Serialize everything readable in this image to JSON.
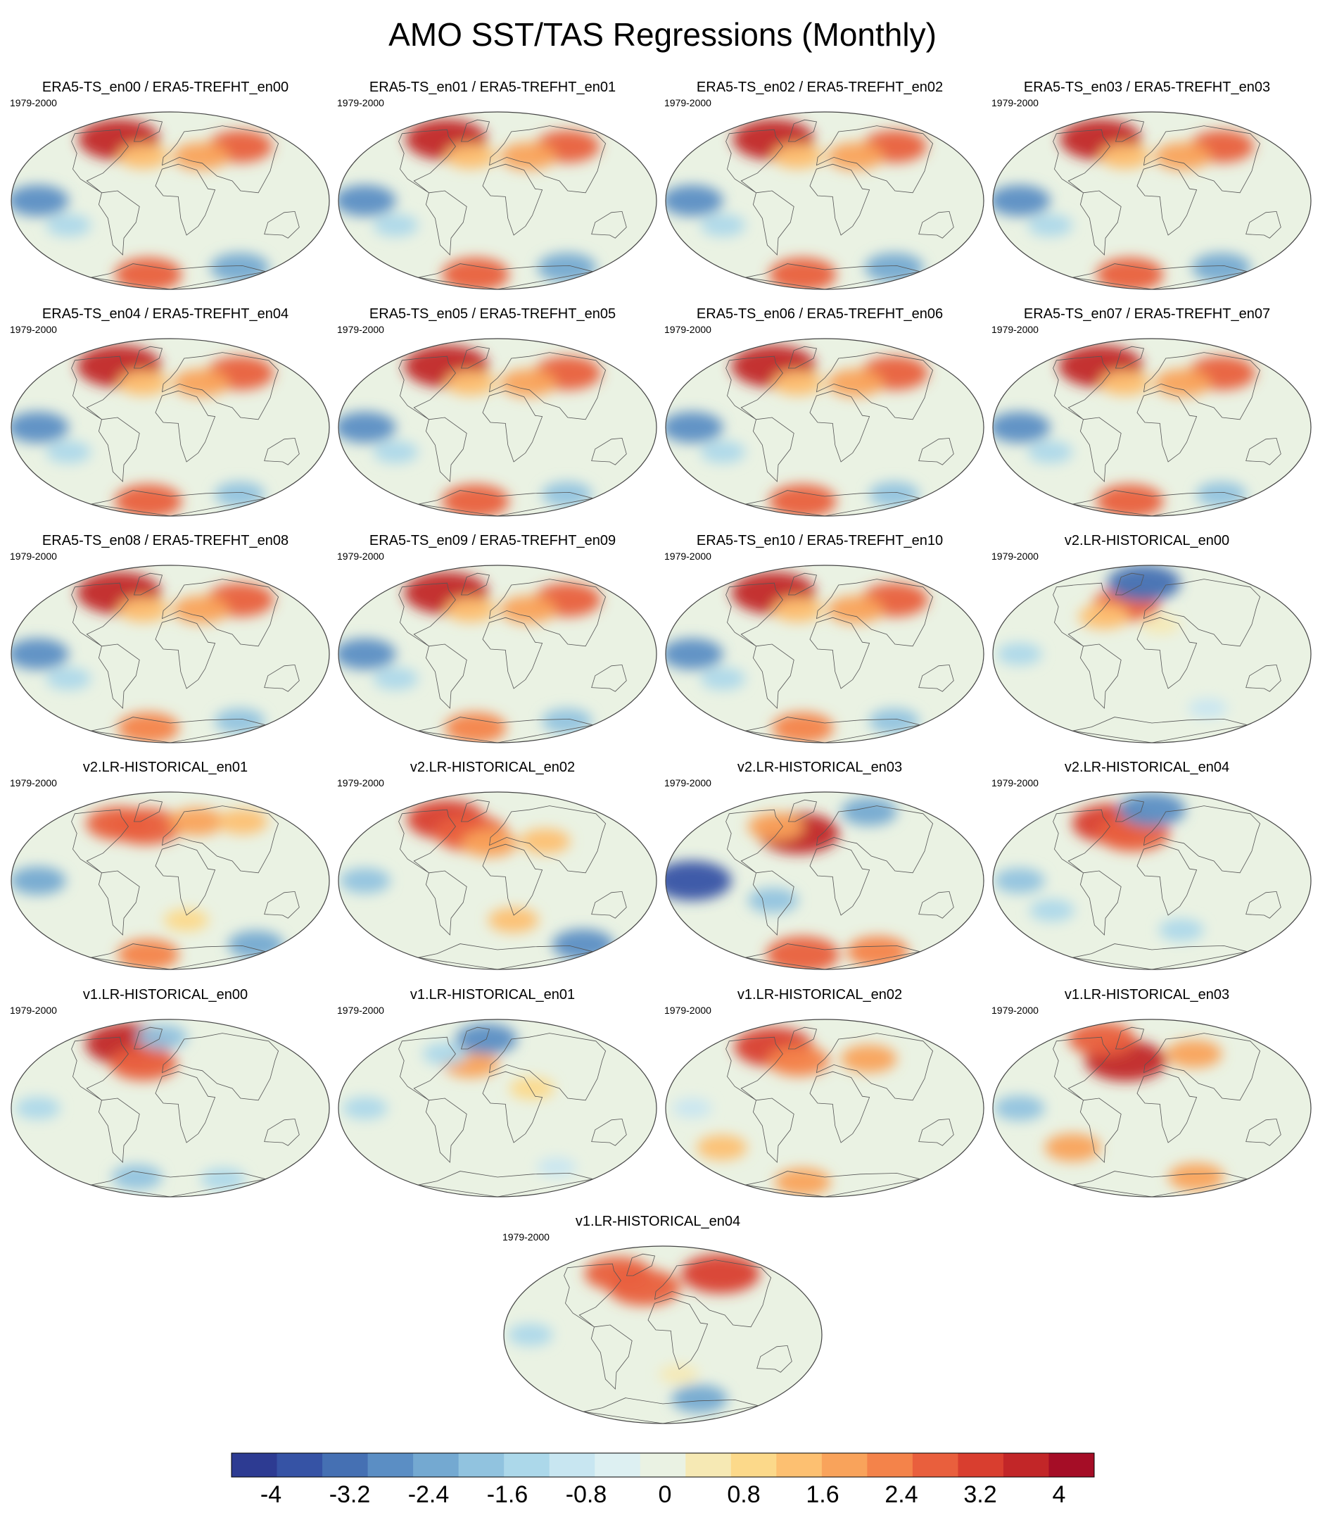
{
  "title": "AMO SST/TAS Regressions (Monthly)",
  "period": "1979-2000",
  "colors": {
    "palette": [
      "#2d3b92",
      "#3653a5",
      "#4570b3",
      "#5b8ec4",
      "#74a9d1",
      "#91c3df",
      "#acd8ea",
      "#c8e6f1",
      "#ddf0f2",
      "#eaf2e3",
      "#f6e9b4",
      "#fcd98a",
      "#fdc071",
      "#f9a35b",
      "#f4834a",
      "#e95f3d",
      "#d93e2f",
      "#c22628",
      "#a50d26"
    ],
    "coast": "#555555",
    "frame": "#444444"
  },
  "chart_data": {
    "type": "heatmap",
    "description_variable": "regression coefficient",
    "colorbar": {
      "levels": [
        -4.4,
        -4,
        -3.6,
        -3.2,
        -2.8,
        -2.4,
        -2,
        -1.6,
        -1.2,
        -0.8,
        -0.4,
        0,
        0.4,
        0.8,
        1.2,
        1.6,
        2,
        2.4,
        2.8,
        3.2,
        3.6,
        4,
        4.4
      ],
      "tick_labels": [
        "-4",
        "-3.2",
        "-2.4",
        "-1.6",
        "-0.8",
        "0",
        "0.8",
        "1.6",
        "2.4",
        "3.2",
        "4"
      ],
      "tick_values": [
        -4,
        -3.2,
        -2.4,
        -1.6,
        -0.8,
        0,
        0.8,
        1.6,
        2.4,
        3.2,
        4
      ]
    },
    "panels": [
      {
        "label": "ERA5-TS_en00 / ERA5-TREFHT_en00",
        "features": [
          {
            "lon": -80,
            "lat": 62,
            "v": 3.8
          },
          {
            "lon": 100,
            "lat": 55,
            "v": 2.6
          },
          {
            "lon": 40,
            "lat": 45,
            "v": 2.0
          },
          {
            "lon": -35,
            "lat": 45,
            "v": 1.6
          },
          {
            "lon": -150,
            "lat": 0,
            "v": -2.4
          },
          {
            "lon": -120,
            "lat": -25,
            "v": -1.2
          },
          {
            "lon": -45,
            "lat": -75,
            "v": 2.8
          },
          {
            "lon": 120,
            "lat": -68,
            "v": -2.2
          }
        ]
      },
      {
        "label": "ERA5-TS_en01 / ERA5-TREFHT_en01",
        "features": [
          {
            "lon": -80,
            "lat": 62,
            "v": 3.8
          },
          {
            "lon": 100,
            "lat": 55,
            "v": 2.6
          },
          {
            "lon": 40,
            "lat": 45,
            "v": 2.0
          },
          {
            "lon": -35,
            "lat": 45,
            "v": 1.6
          },
          {
            "lon": -150,
            "lat": 0,
            "v": -2.4
          },
          {
            "lon": -120,
            "lat": -25,
            "v": -1.2
          },
          {
            "lon": -45,
            "lat": -75,
            "v": 2.8
          },
          {
            "lon": 120,
            "lat": -68,
            "v": -2.2
          }
        ]
      },
      {
        "label": "ERA5-TS_en02 / ERA5-TREFHT_en02",
        "features": [
          {
            "lon": -80,
            "lat": 62,
            "v": 3.8
          },
          {
            "lon": 100,
            "lat": 55,
            "v": 2.6
          },
          {
            "lon": 40,
            "lat": 45,
            "v": 2.0
          },
          {
            "lon": -35,
            "lat": 45,
            "v": 1.6
          },
          {
            "lon": -150,
            "lat": 0,
            "v": -2.4
          },
          {
            "lon": -120,
            "lat": -25,
            "v": -1.2
          },
          {
            "lon": -45,
            "lat": -75,
            "v": 2.8
          },
          {
            "lon": 120,
            "lat": -68,
            "v": -2.2
          }
        ]
      },
      {
        "label": "ERA5-TS_en03 / ERA5-TREFHT_en03",
        "features": [
          {
            "lon": -80,
            "lat": 62,
            "v": 3.8
          },
          {
            "lon": 100,
            "lat": 55,
            "v": 2.6
          },
          {
            "lon": 40,
            "lat": 45,
            "v": 2.0
          },
          {
            "lon": -35,
            "lat": 45,
            "v": 1.6
          },
          {
            "lon": -150,
            "lat": 0,
            "v": -2.4
          },
          {
            "lon": -120,
            "lat": -25,
            "v": -1.2
          },
          {
            "lon": -45,
            "lat": -75,
            "v": 2.8
          },
          {
            "lon": 120,
            "lat": -68,
            "v": -2.2
          }
        ]
      },
      {
        "label": "ERA5-TS_en04 / ERA5-TREFHT_en04",
        "features": [
          {
            "lon": -80,
            "lat": 62,
            "v": 4.0
          },
          {
            "lon": 100,
            "lat": 55,
            "v": 2.8
          },
          {
            "lon": 40,
            "lat": 45,
            "v": 2.0
          },
          {
            "lon": -35,
            "lat": 45,
            "v": 1.6
          },
          {
            "lon": -150,
            "lat": 0,
            "v": -2.4
          },
          {
            "lon": -120,
            "lat": -25,
            "v": -1.2
          },
          {
            "lon": -45,
            "lat": -75,
            "v": 2.8
          },
          {
            "lon": 120,
            "lat": -68,
            "v": -1.6
          }
        ]
      },
      {
        "label": "ERA5-TS_en05 / ERA5-TREFHT_en05",
        "features": [
          {
            "lon": -80,
            "lat": 62,
            "v": 4.0
          },
          {
            "lon": 100,
            "lat": 55,
            "v": 2.8
          },
          {
            "lon": 40,
            "lat": 45,
            "v": 2.0
          },
          {
            "lon": -35,
            "lat": 45,
            "v": 1.6
          },
          {
            "lon": -150,
            "lat": 0,
            "v": -2.4
          },
          {
            "lon": -120,
            "lat": -25,
            "v": -1.2
          },
          {
            "lon": -45,
            "lat": -75,
            "v": 2.8
          },
          {
            "lon": 120,
            "lat": -68,
            "v": -1.6
          }
        ]
      },
      {
        "label": "ERA5-TS_en06 / ERA5-TREFHT_en06",
        "features": [
          {
            "lon": -80,
            "lat": 62,
            "v": 4.0
          },
          {
            "lon": 100,
            "lat": 55,
            "v": 2.8
          },
          {
            "lon": 40,
            "lat": 45,
            "v": 2.0
          },
          {
            "lon": -35,
            "lat": 45,
            "v": 1.6
          },
          {
            "lon": -150,
            "lat": 0,
            "v": -2.4
          },
          {
            "lon": -120,
            "lat": -25,
            "v": -1.2
          },
          {
            "lon": -45,
            "lat": -75,
            "v": 2.8
          },
          {
            "lon": 120,
            "lat": -68,
            "v": -1.6
          }
        ]
      },
      {
        "label": "ERA5-TS_en07 / ERA5-TREFHT_en07",
        "features": [
          {
            "lon": -80,
            "lat": 62,
            "v": 4.0
          },
          {
            "lon": 100,
            "lat": 55,
            "v": 2.8
          },
          {
            "lon": 40,
            "lat": 45,
            "v": 2.0
          },
          {
            "lon": -35,
            "lat": 45,
            "v": 1.6
          },
          {
            "lon": -150,
            "lat": 0,
            "v": -2.4
          },
          {
            "lon": -120,
            "lat": -25,
            "v": -1.2
          },
          {
            "lon": -45,
            "lat": -75,
            "v": 2.8
          },
          {
            "lon": 120,
            "lat": -68,
            "v": -1.6
          }
        ]
      },
      {
        "label": "ERA5-TS_en08 / ERA5-TREFHT_en08",
        "features": [
          {
            "lon": -80,
            "lat": 62,
            "v": 4.0
          },
          {
            "lon": 100,
            "lat": 55,
            "v": 2.8
          },
          {
            "lon": 40,
            "lat": 45,
            "v": 2.0
          },
          {
            "lon": -35,
            "lat": 45,
            "v": 1.6
          },
          {
            "lon": -150,
            "lat": 0,
            "v": -2.4
          },
          {
            "lon": -120,
            "lat": -25,
            "v": -1.2
          },
          {
            "lon": -45,
            "lat": -75,
            "v": 2.4
          },
          {
            "lon": 120,
            "lat": -68,
            "v": -1.6
          }
        ]
      },
      {
        "label": "ERA5-TS_en09 / ERA5-TREFHT_en09",
        "features": [
          {
            "lon": -80,
            "lat": 62,
            "v": 4.0
          },
          {
            "lon": 100,
            "lat": 55,
            "v": 2.8
          },
          {
            "lon": 40,
            "lat": 45,
            "v": 2.0
          },
          {
            "lon": -35,
            "lat": 45,
            "v": 1.6
          },
          {
            "lon": -150,
            "lat": 0,
            "v": -2.4
          },
          {
            "lon": -120,
            "lat": -25,
            "v": -1.2
          },
          {
            "lon": -45,
            "lat": -75,
            "v": 2.4
          },
          {
            "lon": 120,
            "lat": -68,
            "v": -1.6
          }
        ]
      },
      {
        "label": "ERA5-TS_en10 / ERA5-TREFHT_en10",
        "features": [
          {
            "lon": -80,
            "lat": 62,
            "v": 4.0
          },
          {
            "lon": 100,
            "lat": 55,
            "v": 2.8
          },
          {
            "lon": 40,
            "lat": 45,
            "v": 2.0
          },
          {
            "lon": -35,
            "lat": 45,
            "v": 1.6
          },
          {
            "lon": -150,
            "lat": 0,
            "v": -2.4
          },
          {
            "lon": -120,
            "lat": -25,
            "v": -1.2
          },
          {
            "lon": -45,
            "lat": -75,
            "v": 2.4
          },
          {
            "lon": 120,
            "lat": -68,
            "v": -1.6
          }
        ]
      },
      {
        "label": "v2.LR-HISTORICAL_en00",
        "features": [
          {
            "lon": -35,
            "lat": 50,
            "v": 2.8
          },
          {
            "lon": -60,
            "lat": 38,
            "v": 1.6
          },
          {
            "lon": -15,
            "lat": 72,
            "v": -3.2
          },
          {
            "lon": 10,
            "lat": 30,
            "v": 0.8
          },
          {
            "lon": -150,
            "lat": 0,
            "v": -1.2
          },
          {
            "lon": 80,
            "lat": -55,
            "v": -0.8
          }
        ]
      },
      {
        "label": "v2.LR-HISTORICAL_en01",
        "features": [
          {
            "lon": -75,
            "lat": 58,
            "v": 2.8
          },
          {
            "lon": -35,
            "lat": 55,
            "v": 3.2
          },
          {
            "lon": 40,
            "lat": 60,
            "v": 2.0
          },
          {
            "lon": 110,
            "lat": 60,
            "v": 1.6
          },
          {
            "lon": -150,
            "lat": 0,
            "v": -2.0
          },
          {
            "lon": -45,
            "lat": -75,
            "v": 2.4
          },
          {
            "lon": 20,
            "lat": -40,
            "v": 1.2
          },
          {
            "lon": 140,
            "lat": -65,
            "v": -2.0
          }
        ]
      },
      {
        "label": "v2.LR-HISTORICAL_en02",
        "features": [
          {
            "lon": -80,
            "lat": 62,
            "v": 3.6
          },
          {
            "lon": -35,
            "lat": 48,
            "v": 3.2
          },
          {
            "lon": -10,
            "lat": 38,
            "v": 2.0
          },
          {
            "lon": 60,
            "lat": 40,
            "v": 1.6
          },
          {
            "lon": -150,
            "lat": 0,
            "v": -1.6
          },
          {
            "lon": 20,
            "lat": -40,
            "v": 1.6
          },
          {
            "lon": 140,
            "lat": -65,
            "v": -2.4
          }
        ]
      },
      {
        "label": "v2.LR-HISTORICAL_en03",
        "features": [
          {
            "lon": -35,
            "lat": 48,
            "v": 3.8
          },
          {
            "lon": -70,
            "lat": 55,
            "v": 2.0
          },
          {
            "lon": 80,
            "lat": 70,
            "v": -2.0
          },
          {
            "lon": -150,
            "lat": 0,
            "v": -3.6
          },
          {
            "lon": -60,
            "lat": -20,
            "v": -1.6
          },
          {
            "lon": -45,
            "lat": -75,
            "v": 3.2
          },
          {
            "lon": 100,
            "lat": -72,
            "v": 2.4
          }
        ]
      },
      {
        "label": "v2.LR-HISTORICAL_en04",
        "features": [
          {
            "lon": -60,
            "lat": 58,
            "v": 3.6
          },
          {
            "lon": -25,
            "lat": 48,
            "v": 3.2
          },
          {
            "lon": 0,
            "lat": 72,
            "v": -2.8
          },
          {
            "lon": -150,
            "lat": 0,
            "v": -1.6
          },
          {
            "lon": -120,
            "lat": -30,
            "v": -1.2
          },
          {
            "lon": 40,
            "lat": -50,
            "v": -1.2
          }
        ]
      },
      {
        "label": "v1.LR-HISTORICAL_en00",
        "features": [
          {
            "lon": -70,
            "lat": 65,
            "v": 4.0
          },
          {
            "lon": -35,
            "lat": 45,
            "v": 2.8
          },
          {
            "lon": -15,
            "lat": 72,
            "v": -1.6
          },
          {
            "lon": -150,
            "lat": 0,
            "v": -1.2
          },
          {
            "lon": -60,
            "lat": -70,
            "v": -1.6
          },
          {
            "lon": 100,
            "lat": -72,
            "v": -1.2
          }
        ]
      },
      {
        "label": "v1.LR-HISTORICAL_en01",
        "features": [
          {
            "lon": -35,
            "lat": 45,
            "v": 2.0
          },
          {
            "lon": -20,
            "lat": 70,
            "v": -2.4
          },
          {
            "lon": -75,
            "lat": 55,
            "v": -1.2
          },
          {
            "lon": -150,
            "lat": 0,
            "v": -1.2
          },
          {
            "lon": 40,
            "lat": 20,
            "v": 1.2
          },
          {
            "lon": 90,
            "lat": -60,
            "v": -0.8
          }
        ]
      },
      {
        "label": "v1.LR-HISTORICAL_en02",
        "features": [
          {
            "lon": -80,
            "lat": 62,
            "v": 3.6
          },
          {
            "lon": -35,
            "lat": 48,
            "v": 2.4
          },
          {
            "lon": 60,
            "lat": 50,
            "v": 2.0
          },
          {
            "lon": -150,
            "lat": 0,
            "v": -0.8
          },
          {
            "lon": -45,
            "lat": -75,
            "v": 2.0
          },
          {
            "lon": -130,
            "lat": -40,
            "v": 1.6
          }
        ]
      },
      {
        "label": "v1.LR-HISTORICAL_en03",
        "features": [
          {
            "lon": -35,
            "lat": 48,
            "v": 3.8
          },
          {
            "lon": -90,
            "lat": 70,
            "v": 2.8
          },
          {
            "lon": 60,
            "lat": 55,
            "v": 2.0
          },
          {
            "lon": -150,
            "lat": 0,
            "v": -1.6
          },
          {
            "lon": -100,
            "lat": -40,
            "v": 2.0
          },
          {
            "lon": 80,
            "lat": -70,
            "v": 2.0
          }
        ]
      },
      {
        "label": "v1.LR-HISTORICAL_en04",
        "features": [
          {
            "lon": -70,
            "lat": 62,
            "v": 2.8
          },
          {
            "lon": -25,
            "lat": 48,
            "v": 3.2
          },
          {
            "lon": 90,
            "lat": 62,
            "v": 3.6
          },
          {
            "lon": -150,
            "lat": 0,
            "v": -1.2
          },
          {
            "lon": 60,
            "lat": -65,
            "v": -2.0
          },
          {
            "lon": 20,
            "lat": -40,
            "v": 0.8
          }
        ]
      }
    ]
  }
}
